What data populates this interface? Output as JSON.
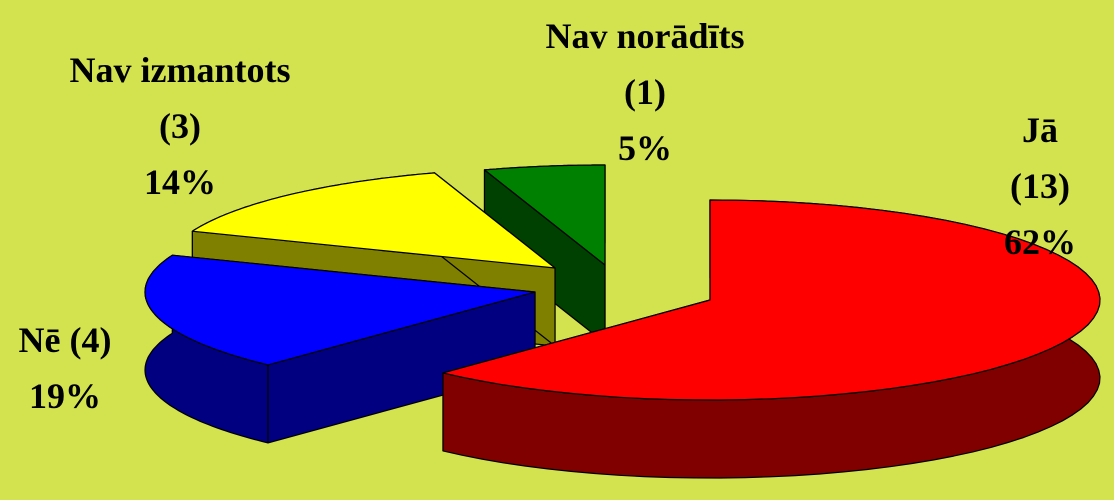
{
  "chart_data": {
    "type": "pie3d",
    "categories": [
      "Jā (13)",
      "Nē (4)",
      "Nav izmantots\n(3)",
      "Nav norādīts\n(1)"
    ],
    "values": [
      62,
      19,
      14,
      5
    ],
    "value_labels": [
      "62%",
      "19%",
      "14%",
      "5%"
    ],
    "colors": [
      "#ff0000",
      "#0000ff",
      "#ffff00",
      "#008000"
    ],
    "side_colors": [
      "#800000",
      "#000080",
      "#808000",
      "#004000"
    ]
  }
}
